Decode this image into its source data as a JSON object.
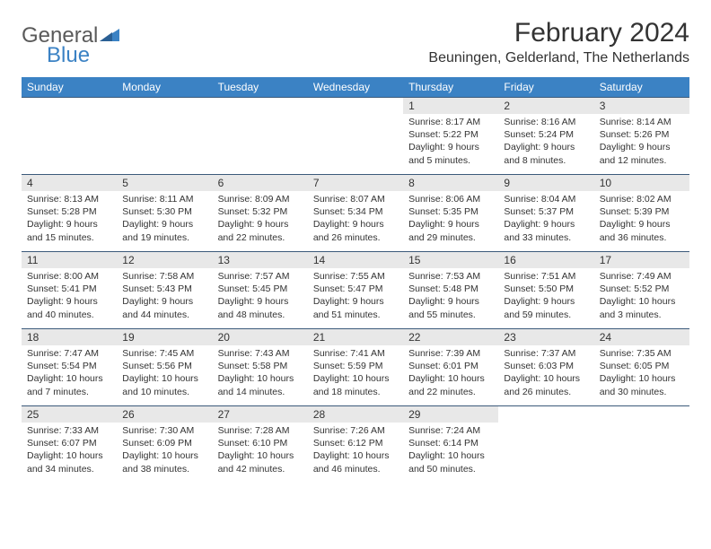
{
  "logo": {
    "text1": "General",
    "text2": "Blue"
  },
  "title": "February 2024",
  "location": "Beuningen, Gelderland, The Netherlands",
  "colors": {
    "header_bg": "#3b82c4",
    "header_text": "#ffffff",
    "daynum_bg": "#e8e8e8",
    "text": "#333333",
    "row_border": "#3b5a7a",
    "logo_gray": "#5a5a5a",
    "logo_blue": "#3b82c4"
  },
  "day_headers": [
    "Sunday",
    "Monday",
    "Tuesday",
    "Wednesday",
    "Thursday",
    "Friday",
    "Saturday"
  ],
  "weeks": [
    [
      {
        "n": "",
        "sr": "",
        "ss": "",
        "dl1": "",
        "dl2": ""
      },
      {
        "n": "",
        "sr": "",
        "ss": "",
        "dl1": "",
        "dl2": ""
      },
      {
        "n": "",
        "sr": "",
        "ss": "",
        "dl1": "",
        "dl2": ""
      },
      {
        "n": "",
        "sr": "",
        "ss": "",
        "dl1": "",
        "dl2": ""
      },
      {
        "n": "1",
        "sr": "Sunrise: 8:17 AM",
        "ss": "Sunset: 5:22 PM",
        "dl1": "Daylight: 9 hours",
        "dl2": "and 5 minutes."
      },
      {
        "n": "2",
        "sr": "Sunrise: 8:16 AM",
        "ss": "Sunset: 5:24 PM",
        "dl1": "Daylight: 9 hours",
        "dl2": "and 8 minutes."
      },
      {
        "n": "3",
        "sr": "Sunrise: 8:14 AM",
        "ss": "Sunset: 5:26 PM",
        "dl1": "Daylight: 9 hours",
        "dl2": "and 12 minutes."
      }
    ],
    [
      {
        "n": "4",
        "sr": "Sunrise: 8:13 AM",
        "ss": "Sunset: 5:28 PM",
        "dl1": "Daylight: 9 hours",
        "dl2": "and 15 minutes."
      },
      {
        "n": "5",
        "sr": "Sunrise: 8:11 AM",
        "ss": "Sunset: 5:30 PM",
        "dl1": "Daylight: 9 hours",
        "dl2": "and 19 minutes."
      },
      {
        "n": "6",
        "sr": "Sunrise: 8:09 AM",
        "ss": "Sunset: 5:32 PM",
        "dl1": "Daylight: 9 hours",
        "dl2": "and 22 minutes."
      },
      {
        "n": "7",
        "sr": "Sunrise: 8:07 AM",
        "ss": "Sunset: 5:34 PM",
        "dl1": "Daylight: 9 hours",
        "dl2": "and 26 minutes."
      },
      {
        "n": "8",
        "sr": "Sunrise: 8:06 AM",
        "ss": "Sunset: 5:35 PM",
        "dl1": "Daylight: 9 hours",
        "dl2": "and 29 minutes."
      },
      {
        "n": "9",
        "sr": "Sunrise: 8:04 AM",
        "ss": "Sunset: 5:37 PM",
        "dl1": "Daylight: 9 hours",
        "dl2": "and 33 minutes."
      },
      {
        "n": "10",
        "sr": "Sunrise: 8:02 AM",
        "ss": "Sunset: 5:39 PM",
        "dl1": "Daylight: 9 hours",
        "dl2": "and 36 minutes."
      }
    ],
    [
      {
        "n": "11",
        "sr": "Sunrise: 8:00 AM",
        "ss": "Sunset: 5:41 PM",
        "dl1": "Daylight: 9 hours",
        "dl2": "and 40 minutes."
      },
      {
        "n": "12",
        "sr": "Sunrise: 7:58 AM",
        "ss": "Sunset: 5:43 PM",
        "dl1": "Daylight: 9 hours",
        "dl2": "and 44 minutes."
      },
      {
        "n": "13",
        "sr": "Sunrise: 7:57 AM",
        "ss": "Sunset: 5:45 PM",
        "dl1": "Daylight: 9 hours",
        "dl2": "and 48 minutes."
      },
      {
        "n": "14",
        "sr": "Sunrise: 7:55 AM",
        "ss": "Sunset: 5:47 PM",
        "dl1": "Daylight: 9 hours",
        "dl2": "and 51 minutes."
      },
      {
        "n": "15",
        "sr": "Sunrise: 7:53 AM",
        "ss": "Sunset: 5:48 PM",
        "dl1": "Daylight: 9 hours",
        "dl2": "and 55 minutes."
      },
      {
        "n": "16",
        "sr": "Sunrise: 7:51 AM",
        "ss": "Sunset: 5:50 PM",
        "dl1": "Daylight: 9 hours",
        "dl2": "and 59 minutes."
      },
      {
        "n": "17",
        "sr": "Sunrise: 7:49 AM",
        "ss": "Sunset: 5:52 PM",
        "dl1": "Daylight: 10 hours",
        "dl2": "and 3 minutes."
      }
    ],
    [
      {
        "n": "18",
        "sr": "Sunrise: 7:47 AM",
        "ss": "Sunset: 5:54 PM",
        "dl1": "Daylight: 10 hours",
        "dl2": "and 7 minutes."
      },
      {
        "n": "19",
        "sr": "Sunrise: 7:45 AM",
        "ss": "Sunset: 5:56 PM",
        "dl1": "Daylight: 10 hours",
        "dl2": "and 10 minutes."
      },
      {
        "n": "20",
        "sr": "Sunrise: 7:43 AM",
        "ss": "Sunset: 5:58 PM",
        "dl1": "Daylight: 10 hours",
        "dl2": "and 14 minutes."
      },
      {
        "n": "21",
        "sr": "Sunrise: 7:41 AM",
        "ss": "Sunset: 5:59 PM",
        "dl1": "Daylight: 10 hours",
        "dl2": "and 18 minutes."
      },
      {
        "n": "22",
        "sr": "Sunrise: 7:39 AM",
        "ss": "Sunset: 6:01 PM",
        "dl1": "Daylight: 10 hours",
        "dl2": "and 22 minutes."
      },
      {
        "n": "23",
        "sr": "Sunrise: 7:37 AM",
        "ss": "Sunset: 6:03 PM",
        "dl1": "Daylight: 10 hours",
        "dl2": "and 26 minutes."
      },
      {
        "n": "24",
        "sr": "Sunrise: 7:35 AM",
        "ss": "Sunset: 6:05 PM",
        "dl1": "Daylight: 10 hours",
        "dl2": "and 30 minutes."
      }
    ],
    [
      {
        "n": "25",
        "sr": "Sunrise: 7:33 AM",
        "ss": "Sunset: 6:07 PM",
        "dl1": "Daylight: 10 hours",
        "dl2": "and 34 minutes."
      },
      {
        "n": "26",
        "sr": "Sunrise: 7:30 AM",
        "ss": "Sunset: 6:09 PM",
        "dl1": "Daylight: 10 hours",
        "dl2": "and 38 minutes."
      },
      {
        "n": "27",
        "sr": "Sunrise: 7:28 AM",
        "ss": "Sunset: 6:10 PM",
        "dl1": "Daylight: 10 hours",
        "dl2": "and 42 minutes."
      },
      {
        "n": "28",
        "sr": "Sunrise: 7:26 AM",
        "ss": "Sunset: 6:12 PM",
        "dl1": "Daylight: 10 hours",
        "dl2": "and 46 minutes."
      },
      {
        "n": "29",
        "sr": "Sunrise: 7:24 AM",
        "ss": "Sunset: 6:14 PM",
        "dl1": "Daylight: 10 hours",
        "dl2": "and 50 minutes."
      },
      {
        "n": "",
        "sr": "",
        "ss": "",
        "dl1": "",
        "dl2": ""
      },
      {
        "n": "",
        "sr": "",
        "ss": "",
        "dl1": "",
        "dl2": ""
      }
    ]
  ]
}
